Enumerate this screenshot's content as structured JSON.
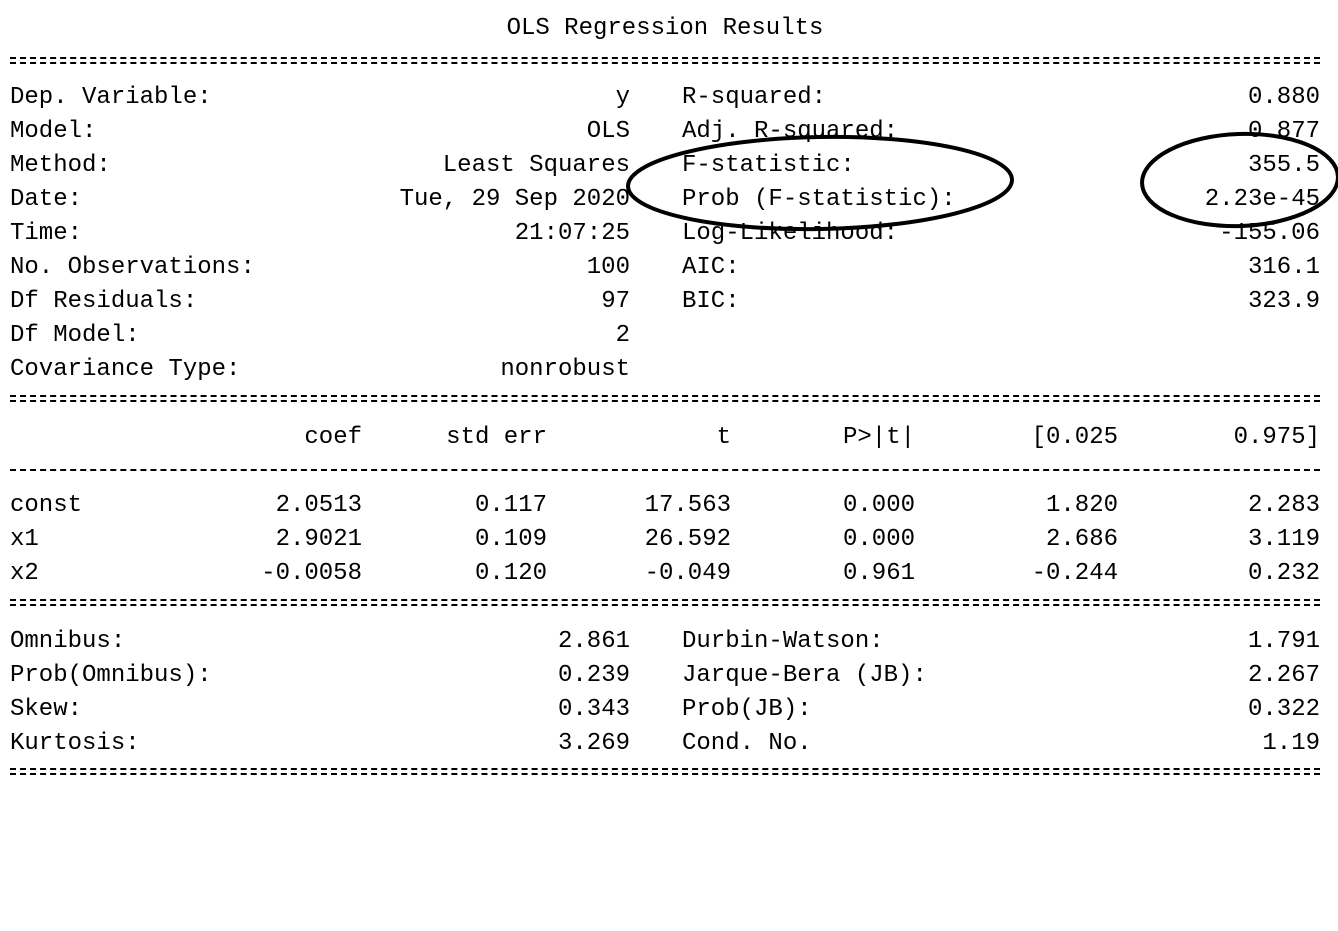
{
  "title": "OLS Regression Results",
  "summary_left": [
    {
      "label": "Dep. Variable:",
      "value": "y"
    },
    {
      "label": "Model:",
      "value": "OLS"
    },
    {
      "label": "Method:",
      "value": "Least Squares"
    },
    {
      "label": "Date:",
      "value": "Tue, 29 Sep 2020"
    },
    {
      "label": "Time:",
      "value": "21:07:25"
    },
    {
      "label": "No. Observations:",
      "value": "100"
    },
    {
      "label": "Df Residuals:",
      "value": "97"
    },
    {
      "label": "Df Model:",
      "value": "2"
    },
    {
      "label": "Covariance Type:",
      "value": "nonrobust"
    }
  ],
  "summary_right": [
    {
      "label": "R-squared:",
      "value": "0.880"
    },
    {
      "label": "Adj. R-squared:",
      "value": "0.877"
    },
    {
      "label": "F-statistic:",
      "value": "355.5"
    },
    {
      "label": "Prob (F-statistic):",
      "value": "2.23e-45"
    },
    {
      "label": "Log-Likelihood:",
      "value": "-155.06"
    },
    {
      "label": "AIC:",
      "value": "316.1"
    },
    {
      "label": "BIC:",
      "value": "323.9"
    }
  ],
  "coef_table": {
    "headers": [
      "coef",
      "std err",
      "t",
      "P>|t|",
      "[0.025",
      "0.975]"
    ],
    "rows": [
      {
        "name": "const",
        "values": [
          "2.0513",
          "0.117",
          "17.563",
          "0.000",
          "1.820",
          "2.283"
        ]
      },
      {
        "name": "x1",
        "values": [
          "2.9021",
          "0.109",
          "26.592",
          "0.000",
          "2.686",
          "3.119"
        ]
      },
      {
        "name": "x2",
        "values": [
          "-0.0058",
          "0.120",
          "-0.049",
          "0.961",
          "-0.244",
          "0.232"
        ]
      }
    ]
  },
  "diagnostics_left": [
    {
      "label": "Omnibus:",
      "value": "2.861"
    },
    {
      "label": "Prob(Omnibus):",
      "value": "0.239"
    },
    {
      "label": "Skew:",
      "value": "0.343"
    },
    {
      "label": "Kurtosis:",
      "value": "3.269"
    }
  ],
  "diagnostics_right": [
    {
      "label": "Durbin-Watson:",
      "value": "1.791"
    },
    {
      "label": "Jarque-Bera (JB):",
      "value": "2.267"
    },
    {
      "label": "Prob(JB):",
      "value": "0.322"
    },
    {
      "label": "Cond. No.",
      "value": "1.19"
    }
  ],
  "annotations": {
    "ellipse_color": "#000000"
  }
}
